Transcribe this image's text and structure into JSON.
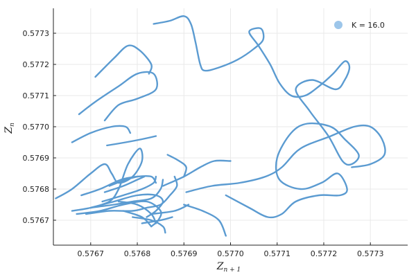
{
  "chart_data": {
    "type": "line",
    "title": "",
    "xlabel": "Z",
    "xlabel_sub": "n + 1",
    "ylabel": "Z",
    "ylabel_sub": "n",
    "xlim": [
      0.57662,
      0.57738
    ],
    "ylim": [
      0.57662,
      0.57738
    ],
    "x_ticks": [
      0.5767,
      0.5768,
      0.5769,
      0.577,
      0.5771,
      0.5772,
      0.5773
    ],
    "y_ticks": [
      0.5767,
      0.5768,
      0.5769,
      0.577,
      0.5771,
      0.5772,
      0.5773
    ],
    "x_tick_labels": [
      "0.5767",
      "0.5768",
      "0.5769",
      "0.5770",
      "0.5771",
      "0.5772",
      "0.5773"
    ],
    "y_tick_labels": [
      "0.5767",
      "0.5768",
      "0.5769",
      "0.5770",
      "0.5771",
      "0.5772",
      "0.5773"
    ],
    "grid": true,
    "legend_position": "top-right",
    "colors": {
      "series": "#5b9bd1",
      "legend_marker": "#9dc6ea"
    },
    "series": [
      {
        "name": "K = 16.0",
        "segments": [
          [
            [
              0.576835,
              0.57733
            ],
            [
              0.57687,
              0.57734
            ],
            [
              0.5769,
              0.577355
            ],
            [
              0.576915,
              0.57733
            ],
            [
              0.576925,
              0.57727
            ],
            [
              0.576935,
              0.5772
            ],
            [
              0.576945,
              0.57718
            ],
            [
              0.576975,
              0.57719
            ],
            [
              0.577015,
              0.577215
            ],
            [
              0.57705,
              0.57725
            ],
            [
              0.57707,
              0.57728
            ],
            [
              0.577065,
              0.577315
            ],
            [
              0.57704,
              0.577305
            ],
            [
              0.57706,
              0.57726
            ],
            [
              0.577085,
              0.5772
            ],
            [
              0.577105,
              0.57714
            ],
            [
              0.57713,
              0.5771
            ],
            [
              0.57716,
              0.5771
            ],
            [
              0.57719,
              0.57713
            ],
            [
              0.57722,
              0.57717
            ],
            [
              0.577245,
              0.57721
            ],
            [
              0.577255,
              0.57719
            ],
            [
              0.577245,
              0.57715
            ],
            [
              0.577225,
              0.57712
            ],
            [
              0.577175,
              0.57715
            ],
            [
              0.57714,
              0.57712
            ],
            [
              0.57717,
              0.57705
            ],
            [
              0.57721,
              0.57697
            ],
            [
              0.57724,
              0.57689
            ],
            [
              0.57726,
              0.57688
            ],
            [
              0.577275,
              0.57691
            ],
            [
              0.577245,
              0.57696
            ],
            [
              0.577215,
              0.577
            ],
            [
              0.577165,
              0.57701
            ],
            [
              0.57713,
              0.57698
            ],
            [
              0.5771,
              0.5769
            ],
            [
              0.577105,
              0.57683
            ],
            [
              0.57715,
              0.5768
            ],
            [
              0.577195,
              0.57682
            ],
            [
              0.57723,
              0.57685
            ],
            [
              0.57725,
              0.5768
            ],
            [
              0.577235,
              0.57678
            ],
            [
              0.57719,
              0.57678
            ],
            [
              0.57714,
              0.57676
            ],
            [
              0.57711,
              0.57672
            ],
            [
              0.57708,
              0.57671
            ],
            [
              0.57704,
              0.57674
            ],
            [
              0.57699,
              0.57678
            ]
          ],
          [
            [
              0.576905,
              0.57679
            ],
            [
              0.57696,
              0.57681
            ],
            [
              0.57702,
              0.57682
            ],
            [
              0.577075,
              0.57684
            ],
            [
              0.57711,
              0.57687
            ],
            [
              0.57715,
              0.57693
            ],
            [
              0.577215,
              0.57697
            ],
            [
              0.577265,
              0.577
            ],
            [
              0.5773,
              0.577
            ],
            [
              0.577325,
              0.57696
            ],
            [
              0.57733,
              0.57691
            ],
            [
              0.5773,
              0.57688
            ],
            [
              0.57726,
              0.57687
            ]
          ],
          [
            [
              0.576675,
              0.57704
            ],
            [
              0.57671,
              0.57708
            ],
            [
              0.57676,
              0.57713
            ],
            [
              0.5768,
              0.57717
            ],
            [
              0.576835,
              0.57717
            ],
            [
              0.57684,
              0.57712
            ],
            [
              0.5768,
              0.57709
            ],
            [
              0.57676,
              0.57707
            ],
            [
              0.57673,
              0.57702
            ]
          ],
          [
            [
              0.57671,
              0.57716
            ],
            [
              0.57675,
              0.57722
            ],
            [
              0.57678,
              0.57726
            ],
            [
              0.576805,
              0.577245
            ],
            [
              0.57683,
              0.5772
            ],
            [
              0.576825,
              0.57717
            ]
          ],
          [
            [
              0.576735,
              0.57694
            ],
            [
              0.576775,
              0.57695
            ],
            [
              0.57681,
              0.57696
            ],
            [
              0.57684,
              0.57697
            ]
          ],
          [
            [
              0.57666,
              0.57695
            ],
            [
              0.5767,
              0.57698
            ],
            [
              0.576745,
              0.577
            ],
            [
              0.576775,
              0.577
            ],
            [
              0.576785,
              0.57698
            ]
          ],
          [
            [
              0.576625,
              0.57677
            ],
            [
              0.57666,
              0.5768
            ],
            [
              0.5767,
              0.57685
            ],
            [
              0.57673,
              0.57688
            ],
            [
              0.576745,
              0.57685
            ],
            [
              0.57676,
              0.57682
            ],
            [
              0.57679,
              0.57684
            ],
            [
              0.57681,
              0.57689
            ],
            [
              0.576805,
              0.57693
            ],
            [
              0.57678,
              0.57688
            ],
            [
              0.57676,
              0.5768
            ],
            [
              0.57674,
              0.57676
            ],
            [
              0.5767,
              0.57674
            ]
          ],
          [
            [
              0.57668,
              0.57678
            ],
            [
              0.57672,
              0.5768
            ],
            [
              0.576765,
              0.57683
            ],
            [
              0.5768,
              0.57684
            ],
            [
              0.57683,
              0.57684
            ],
            [
              0.57684,
              0.57682
            ]
          ],
          [
            [
              0.57666,
              0.57673
            ],
            [
              0.5767,
              0.57674
            ],
            [
              0.57675,
              0.57676
            ],
            [
              0.5768,
              0.57678
            ],
            [
              0.57684,
              0.57678
            ],
            [
              0.576855,
              0.57676
            ],
            [
              0.57684,
              0.57673
            ],
            [
              0.57682,
              0.57671
            ]
          ],
          [
            [
              0.57667,
              0.57672
            ],
            [
              0.57672,
              0.57673
            ],
            [
              0.57677,
              0.57675
            ],
            [
              0.57682,
              0.57676
            ],
            [
              0.57685,
              0.57673
            ],
            [
              0.576845,
              0.5767
            ],
            [
              0.57683,
              0.57668
            ]
          ],
          [
            [
              0.57669,
              0.57672
            ],
            [
              0.57674,
              0.57673
            ],
            [
              0.57679,
              0.57673
            ],
            [
              0.57682,
              0.57674
            ],
            [
              0.57685,
              0.57675
            ],
            [
              0.57687,
              0.57678
            ],
            [
              0.576885,
              0.57681
            ],
            [
              0.57688,
              0.57684
            ]
          ],
          [
            [
              0.5767,
              0.57674
            ],
            [
              0.57675,
              0.57675
            ],
            [
              0.57679,
              0.57676
            ],
            [
              0.57683,
              0.57677
            ],
            [
              0.57685,
              0.5768
            ],
            [
              0.576855,
              0.57683
            ]
          ],
          [
            [
              0.576725,
              0.57676
            ],
            [
              0.57677,
              0.57678
            ],
            [
              0.57681,
              0.5768
            ],
            [
              0.576835,
              0.57682
            ],
            [
              0.57684,
              0.57684
            ]
          ],
          [
            [
              0.57673,
              0.57679
            ],
            [
              0.57677,
              0.57681
            ],
            [
              0.5768,
              0.57683
            ],
            [
              0.576815,
              0.57684
            ]
          ],
          [
            [
              0.57674,
              0.57681
            ],
            [
              0.576775,
              0.57683
            ],
            [
              0.5768,
              0.57684
            ]
          ],
          [
            [
              0.57676,
              0.57676
            ],
            [
              0.5768,
              0.57675
            ],
            [
              0.57683,
              0.57672
            ],
            [
              0.57684,
              0.57669
            ]
          ],
          [
            [
              0.57677,
              0.57673
            ],
            [
              0.57681,
              0.57671
            ],
            [
              0.57683,
              0.57668
            ]
          ],
          [
            [
              0.57679,
              0.57671
            ],
            [
              0.57683,
              0.5767
            ],
            [
              0.576855,
              0.57668
            ],
            [
              0.57686,
              0.57666
            ]
          ],
          [
            [
              0.57681,
              0.57669
            ],
            [
              0.57685,
              0.5767
            ],
            [
              0.576875,
              0.57671
            ]
          ],
          [
            [
              0.57683,
              0.57672
            ],
            [
              0.57688,
              0.57673
            ],
            [
              0.57691,
              0.57675
            ]
          ],
          [
            [
              0.5769,
              0.57675
            ],
            [
              0.57694,
              0.57673
            ],
            [
              0.576975,
              0.5767
            ],
            [
              0.57699,
              0.57665
            ]
          ],
          [
            [
              0.576855,
              0.57681
            ],
            [
              0.5769,
              0.57684
            ],
            [
              0.576935,
              0.57687
            ],
            [
              0.576965,
              0.57689
            ],
            [
              0.577,
              0.57689
            ]
          ],
          [
            [
              0.576865,
              0.57691
            ],
            [
              0.57689,
              0.57689
            ],
            [
              0.576905,
              0.57687
            ],
            [
              0.5769,
              0.57684
            ]
          ]
        ]
      }
    ]
  }
}
